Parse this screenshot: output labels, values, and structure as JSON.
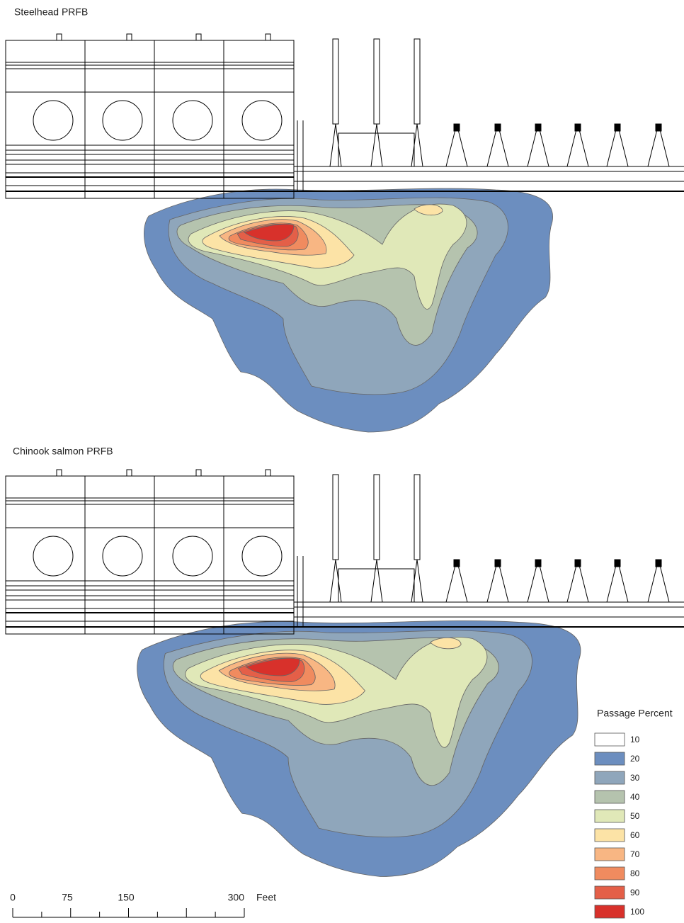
{
  "panels": [
    {
      "title": "Steelhead PRFB"
    },
    {
      "title": "Chinook salmon PRFB"
    }
  ],
  "legend": {
    "title": "Passage Percent",
    "items": [
      {
        "label": "10",
        "color": "#ffffff"
      },
      {
        "label": "20",
        "color": "#6c8ebf"
      },
      {
        "label": "30",
        "color": "#8fa6bb"
      },
      {
        "label": "40",
        "color": "#b5c3ae"
      },
      {
        "label": "50",
        "color": "#e0e8b8"
      },
      {
        "label": "60",
        "color": "#fce3a6"
      },
      {
        "label": "70",
        "color": "#f8b683"
      },
      {
        "label": "80",
        "color": "#f08b5f"
      },
      {
        "label": "90",
        "color": "#e45f48"
      },
      {
        "label": "100",
        "color": "#d8312b"
      }
    ]
  },
  "scale_bar": {
    "labels": [
      "0",
      "75",
      "150",
      "300"
    ],
    "unit": "Feet"
  }
}
